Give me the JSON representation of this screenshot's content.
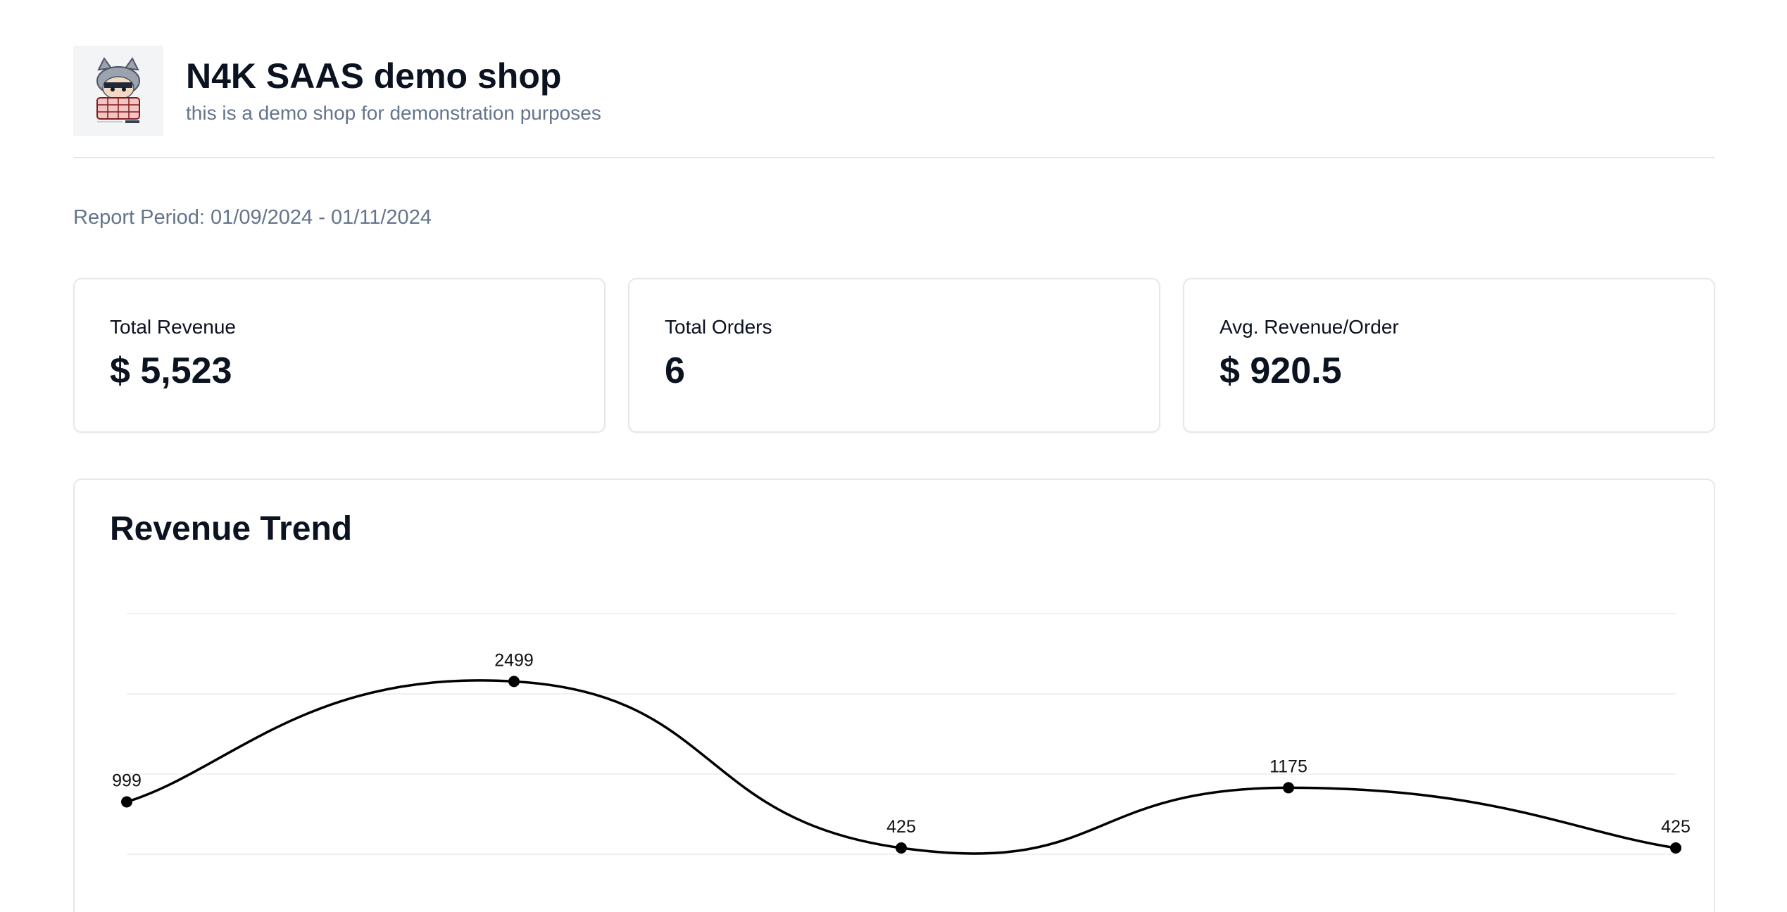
{
  "header": {
    "title": "N4K SAAS demo shop",
    "subtitle": "this is a demo shop for demonstration purposes",
    "logo_icon": "shop-logo-icon"
  },
  "report_period": "Report Period: 01/09/2024 - 01/11/2024",
  "stats": [
    {
      "label": "Total Revenue",
      "value": "$ 5,523"
    },
    {
      "label": "Total Orders",
      "value": "6"
    },
    {
      "label": "Avg. Revenue/Order",
      "value": "$ 920.5"
    }
  ],
  "chart": {
    "title": "Revenue Trend"
  },
  "chart_data": {
    "type": "line",
    "title": "Revenue Trend",
    "values": [
      999,
      2499,
      425,
      1175,
      425
    ],
    "data_labels": [
      "999",
      "2499",
      "425",
      "1175",
      "425"
    ],
    "grid": true,
    "line_color": "#000000",
    "curve": "smooth"
  }
}
